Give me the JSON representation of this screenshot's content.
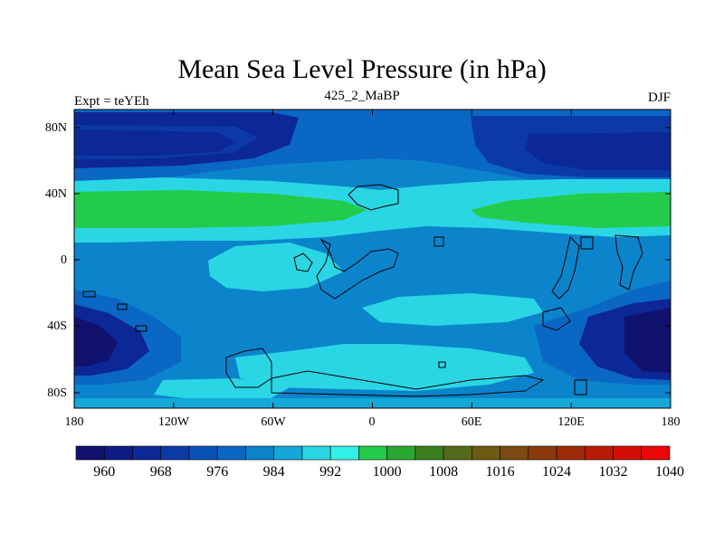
{
  "title": "Mean Sea Level Pressure (in hPa)",
  "left_label": "Expt = teYEh",
  "center_label": "425_2_MaBP",
  "right_label": "DJF",
  "chart_data": {
    "type": "map",
    "variable": "Mean Sea Level Pressure",
    "units": "hPa",
    "season": "DJF",
    "x_ticks": [
      "180",
      "120W",
      "60W",
      "0",
      "60E",
      "120E",
      "180"
    ],
    "y_ticks": [
      "80N",
      "40N",
      "0",
      "40S",
      "80S"
    ],
    "colorbar": {
      "levels": [
        960,
        964,
        968,
        972,
        976,
        980,
        984,
        988,
        992,
        996,
        1000,
        1004,
        1008,
        1012,
        1016,
        1020,
        1024,
        1028,
        1032,
        1036,
        1040
      ],
      "labels": [
        "960",
        "968",
        "976",
        "984",
        "992",
        "1000",
        "1008",
        "1016",
        "1024",
        "1032",
        "1040"
      ],
      "colors": [
        "#11116e",
        "#0e1a86",
        "#0c2796",
        "#0b3aa8",
        "#0a52b8",
        "#0b67c4",
        "#0b84cc",
        "#14a8d8",
        "#2ad6e4",
        "#33f0e6",
        "#22cc4a",
        "#2aa832",
        "#3a7e1e",
        "#556a1a",
        "#6e5a12",
        "#7a4a10",
        "#8a3a0c",
        "#9e2a08",
        "#b81c06",
        "#d40e06",
        "#ec0606"
      ]
    }
  }
}
